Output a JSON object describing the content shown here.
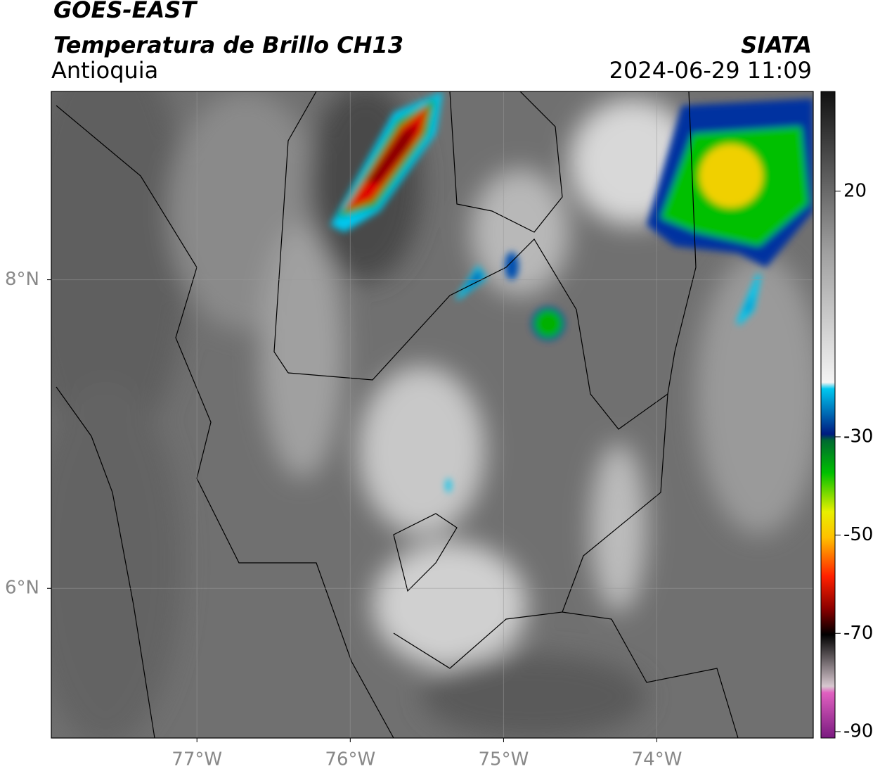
{
  "header": {
    "satellite": "GOES-EAST",
    "product": "Temperatura de Brillo CH13",
    "region": "Antioquia",
    "agency": "SIATA",
    "datetime": "2024-06-29 11:09"
  },
  "map": {
    "xlim": [
      -77.95,
      -72.98
    ],
    "ylim": [
      5.03,
      9.22
    ],
    "xticks": [
      {
        "value": -77,
        "label": "77°W"
      },
      {
        "value": -76,
        "label": "76°W"
      },
      {
        "value": -75,
        "label": "75°W"
      },
      {
        "value": -74,
        "label": "74°W"
      }
    ],
    "yticks": [
      {
        "value": 8,
        "label": "8°N"
      },
      {
        "value": 6,
        "label": "6°N"
      }
    ],
    "grid": true
  },
  "colorbar": {
    "clim": [
      -91.3,
      40.3
    ],
    "ticks": [
      20,
      -30,
      -50,
      -70,
      -90
    ]
  }
}
